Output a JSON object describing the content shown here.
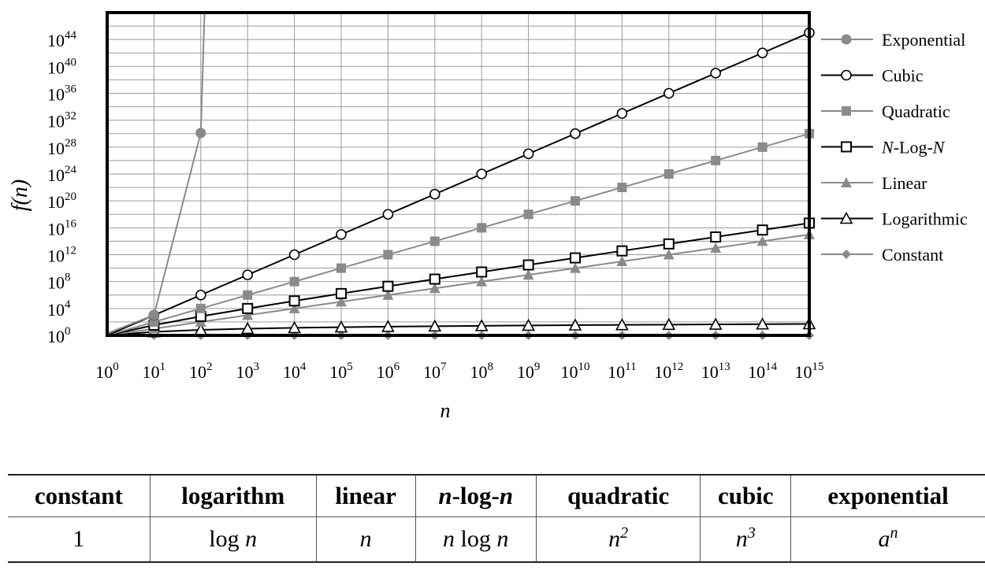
{
  "chart_data": {
    "type": "line",
    "xlabel": "n",
    "ylabel": "f(n)",
    "x_scale": "log",
    "y_scale": "log",
    "xlim": [
      1,
      1000000000000000.0
    ],
    "ylim": [
      1,
      1e+48
    ],
    "x": [
      1,
      10,
      100,
      1000,
      10000,
      100000,
      1000000,
      10000000,
      100000000,
      1000000000,
      10000000000,
      100000000000,
      1000000000000,
      10000000000000,
      100000000000000,
      1000000000000000
    ],
    "x_tick_labels": [
      {
        "base": "10",
        "exp": "0"
      },
      {
        "base": "10",
        "exp": "1"
      },
      {
        "base": "10",
        "exp": "2"
      },
      {
        "base": "10",
        "exp": "3"
      },
      {
        "base": "10",
        "exp": "4"
      },
      {
        "base": "10",
        "exp": "5"
      },
      {
        "base": "10",
        "exp": "6"
      },
      {
        "base": "10",
        "exp": "7"
      },
      {
        "base": "10",
        "exp": "8"
      },
      {
        "base": "10",
        "exp": "9"
      },
      {
        "base": "10",
        "exp": "10"
      },
      {
        "base": "10",
        "exp": "11"
      },
      {
        "base": "10",
        "exp": "12"
      },
      {
        "base": "10",
        "exp": "13"
      },
      {
        "base": "10",
        "exp": "14"
      },
      {
        "base": "10",
        "exp": "15"
      }
    ],
    "y_ticks": [
      1,
      10000.0,
      100000000.0,
      1000000000000.0,
      1e+16,
      1e+20,
      1e+24,
      1e+28,
      1e+32,
      1e+36,
      1e+40,
      1e+44
    ],
    "y_tick_labels": [
      {
        "base": "10",
        "exp": "0"
      },
      {
        "base": "10",
        "exp": "4"
      },
      {
        "base": "10",
        "exp": "8"
      },
      {
        "base": "10",
        "exp": "12"
      },
      {
        "base": "10",
        "exp": "16"
      },
      {
        "base": "10",
        "exp": "20"
      },
      {
        "base": "10",
        "exp": "24"
      },
      {
        "base": "10",
        "exp": "28"
      },
      {
        "base": "10",
        "exp": "32"
      },
      {
        "base": "10",
        "exp": "36"
      },
      {
        "base": "10",
        "exp": "40"
      },
      {
        "base": "10",
        "exp": "44"
      }
    ],
    "grid": true,
    "legend_position": "right",
    "series": [
      {
        "name": "Exponential",
        "marker": "filled-circle",
        "color": "#8a8a8a",
        "x": [
          1,
          10,
          100,
          120
        ],
        "y": [
          2,
          1024,
          1.27e+30,
          1.3e+48
        ]
      },
      {
        "name": "Cubic",
        "marker": "open-circle",
        "color": "#000000",
        "values": [
          1,
          1000.0,
          1000000.0,
          1000000000.0,
          1000000000000.0,
          1000000000000000.0,
          1e+18,
          1e+21,
          1e+24,
          1e+27,
          1e+30,
          1e+33,
          1e+36,
          1e+39,
          1e+42,
          1e+45
        ]
      },
      {
        "name": "Quadratic",
        "marker": "filled-square",
        "color": "#8a8a8a",
        "values": [
          1,
          100.0,
          10000.0,
          1000000.0,
          100000000.0,
          10000000000.0,
          1000000000000.0,
          100000000000000.0,
          1e+16,
          1e+18,
          1e+20,
          1e+22,
          1e+24,
          1e+26,
          1e+28,
          1e+30
        ]
      },
      {
        "name": "N-Log-N",
        "marker": "open-square",
        "color": "#000000",
        "values": [
          1,
          33.2,
          664,
          9966,
          132877,
          1660964,
          19931569,
          232534967,
          2657542476,
          29897352854,
          332192809489,
          3654120904376,
          39863137138648,
          431850652335357,
          4650699332842310,
          49828921423310400
        ]
      },
      {
        "name": "Linear",
        "marker": "filled-triangle",
        "color": "#8a8a8a",
        "values": [
          1,
          10.0,
          100.0,
          1000.0,
          10000.0,
          100000.0,
          1000000.0,
          10000000.0,
          100000000.0,
          1000000000.0,
          10000000000.0,
          100000000000.0,
          1000000000000.0,
          10000000000000.0,
          100000000000000.0,
          1000000000000000.0
        ]
      },
      {
        "name": "Logarithmic",
        "marker": "open-triangle",
        "color": "#000000",
        "values": [
          1,
          3.32,
          6.64,
          9.97,
          13.3,
          16.6,
          19.9,
          23.3,
          26.6,
          29.9,
          33.2,
          36.5,
          39.9,
          43.2,
          46.5,
          49.8
        ]
      },
      {
        "name": "Constant",
        "marker": "filled-diamond",
        "color": "#8a8a8a",
        "values": [
          1,
          1,
          1,
          1,
          1,
          1,
          1,
          1,
          1,
          1,
          1,
          1,
          1,
          1,
          1,
          1
        ]
      }
    ]
  },
  "table": {
    "headers": [
      {
        "pre": "",
        "main": "constant",
        "post": "",
        "italic": false
      },
      {
        "pre": "",
        "main": "logarithm",
        "post": "",
        "italic": false
      },
      {
        "pre": "",
        "main": "linear",
        "post": "",
        "italic": false
      },
      {
        "pre": "n",
        "main": "-log-",
        "post": "n",
        "italic": true
      },
      {
        "pre": "",
        "main": "quadratic",
        "post": "",
        "italic": false
      },
      {
        "pre": "",
        "main": "cubic",
        "post": "",
        "italic": false
      },
      {
        "pre": "",
        "main": "exponential",
        "post": "",
        "italic": false
      }
    ],
    "row": [
      {
        "a": "1",
        "b": "",
        "sup": "",
        "a_italic": false
      },
      {
        "a": "log ",
        "b": "n",
        "sup": "",
        "a_italic": false
      },
      {
        "a": "n",
        "b": "",
        "sup": "",
        "a_italic": true
      },
      {
        "a": "n",
        "b": " log ",
        "c": "n",
        "sup": "",
        "a_italic": true
      },
      {
        "a": "n",
        "b": "",
        "sup": "2",
        "a_italic": true
      },
      {
        "a": "n",
        "b": "",
        "sup": "3",
        "a_italic": true
      },
      {
        "a": "a",
        "b": "",
        "sup": "n",
        "a_italic": true
      }
    ]
  }
}
